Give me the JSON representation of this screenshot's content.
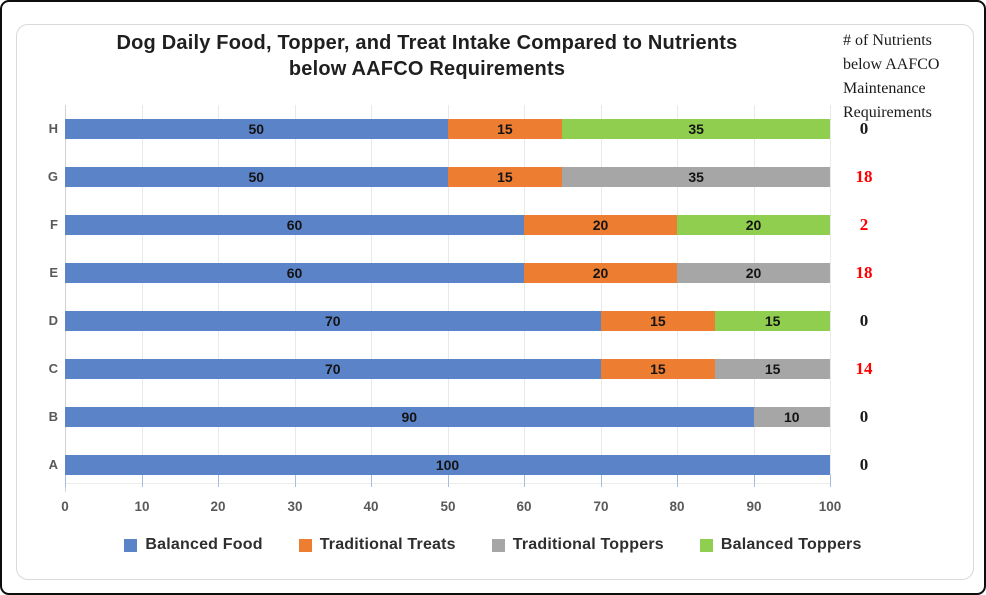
{
  "window": {
    "background": "#ffffff",
    "outer_border_color": "#0d0d0d",
    "frame_border_color": "#d9d9d9"
  },
  "title": {
    "line1": "Dog Daily Food, Topper, and Treat Intake Compared to Nutrients",
    "line2": "below AAFCO Requirements"
  },
  "right_column": {
    "header_lines": [
      "# of Nutrients",
      "below AAFCO",
      "Maintenance",
      "Requirements"
    ],
    "values": [
      {
        "category": "H",
        "value": "0",
        "color": "#1a1a1a"
      },
      {
        "category": "G",
        "value": "18",
        "color": "#ff0000"
      },
      {
        "category": "F",
        "value": "2",
        "color": "#ff0000"
      },
      {
        "category": "E",
        "value": "18",
        "color": "#ff0000"
      },
      {
        "category": "D",
        "value": "0",
        "color": "#1a1a1a"
      },
      {
        "category": "C",
        "value": "14",
        "color": "#ff0000"
      },
      {
        "category": "B",
        "value": "0",
        "color": "#1a1a1a"
      },
      {
        "category": "A",
        "value": "0",
        "color": "#1a1a1a"
      }
    ]
  },
  "chart_data": {
    "type": "bar",
    "orientation": "horizontal",
    "stacked": true,
    "grid": true,
    "title": "Dog Daily Food, Topper, and Treat Intake Compared to Nutrients below AAFCO Requirements",
    "secondary_column_title": "# of Nutrients below AAFCO Maintenance Requirements",
    "categories": [
      "H",
      "G",
      "F",
      "E",
      "D",
      "C",
      "B",
      "A"
    ],
    "series": [
      {
        "name": "Balanced Food",
        "color": "#5b83c7",
        "values": [
          50,
          50,
          60,
          60,
          70,
          70,
          90,
          100
        ]
      },
      {
        "name": "Traditional Treats",
        "color": "#ed7d31",
        "values": [
          15,
          15,
          20,
          20,
          15,
          15,
          0,
          0
        ]
      },
      {
        "name": "Traditional Toppers",
        "color": "#a6a6a6",
        "values": [
          0,
          35,
          0,
          20,
          0,
          15,
          10,
          0
        ]
      },
      {
        "name": "Balanced Toppers",
        "color": "#8fce4e",
        "values": [
          35,
          0,
          20,
          0,
          15,
          0,
          0,
          0
        ]
      }
    ],
    "nutrients_below_requirements": [
      0,
      18,
      2,
      18,
      0,
      14,
      0,
      0
    ],
    "x_axis": {
      "min": 0,
      "max": 100,
      "ticks": [
        0,
        10,
        20,
        30,
        40,
        50,
        60,
        70,
        80,
        90,
        100
      ]
    },
    "legend": {
      "position": "bottom"
    },
    "data_labels": "shown inside each segment",
    "gridline_color": "#e9e9e9",
    "axis_label_color": "#595959"
  }
}
